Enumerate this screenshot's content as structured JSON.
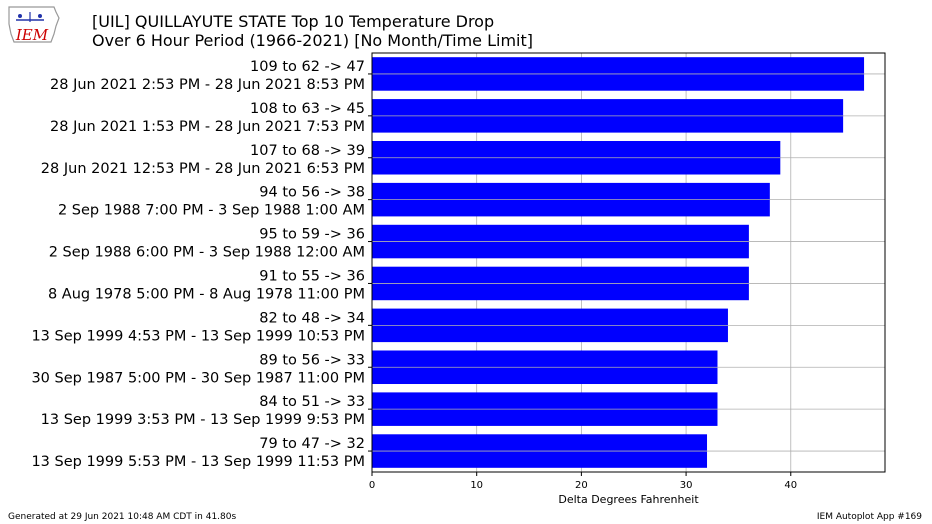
{
  "header": {
    "title_line1": "[UIL] QUILLAYUTE STATE Top 10 Temperature Drop",
    "title_line2": "Over 6 Hour Period (1966-2021) [No Month/Time Limit]"
  },
  "logo": {
    "text": "IEM",
    "icon": "iowa-state-outline-icon"
  },
  "footer": {
    "generated": "Generated at 29 Jun 2021 10:48 AM CDT in 41.80s",
    "app": "IEM Autoplot App #169"
  },
  "colors": {
    "bar": "#0000ff",
    "grid": "#b0b0b0",
    "logo": "#cc0000"
  },
  "chart_data": {
    "type": "bar",
    "orientation": "horizontal",
    "xlabel": "Delta Degrees Fahrenheit",
    "xlim": [
      0,
      49
    ],
    "xticks": [
      0,
      10,
      20,
      30,
      40
    ],
    "grid": true,
    "categories": [
      {
        "line1": "109 to 62 -> 47",
        "line2": "28 Jun 2021 2:53 PM - 28 Jun 2021 8:53 PM"
      },
      {
        "line1": "108 to 63 -> 45",
        "line2": "28 Jun 2021 1:53 PM - 28 Jun 2021 7:53 PM"
      },
      {
        "line1": "107 to 68 -> 39",
        "line2": "28 Jun 2021 12:53 PM - 28 Jun 2021 6:53 PM"
      },
      {
        "line1": "94 to 56 -> 38",
        "line2": "2 Sep 1988 7:00 PM - 3 Sep 1988 1:00 AM"
      },
      {
        "line1": "95 to 59 -> 36",
        "line2": "2 Sep 1988 6:00 PM - 3 Sep 1988 12:00 AM"
      },
      {
        "line1": "91 to 55 -> 36",
        "line2": "8 Aug 1978 5:00 PM - 8 Aug 1978 11:00 PM"
      },
      {
        "line1": "82 to 48 -> 34",
        "line2": "13 Sep 1999 4:53 PM - 13 Sep 1999 10:53 PM"
      },
      {
        "line1": "89 to 56 -> 33",
        "line2": "30 Sep 1987 5:00 PM - 30 Sep 1987 11:00 PM"
      },
      {
        "line1": "84 to 51 -> 33",
        "line2": "13 Sep 1999 3:53 PM - 13 Sep 1999 9:53 PM"
      },
      {
        "line1": "79 to 47 -> 32",
        "line2": "13 Sep 1999 5:53 PM - 13 Sep 1999 11:53 PM"
      }
    ],
    "values": [
      47,
      45,
      39,
      38,
      36,
      36,
      34,
      33,
      33,
      32
    ]
  }
}
